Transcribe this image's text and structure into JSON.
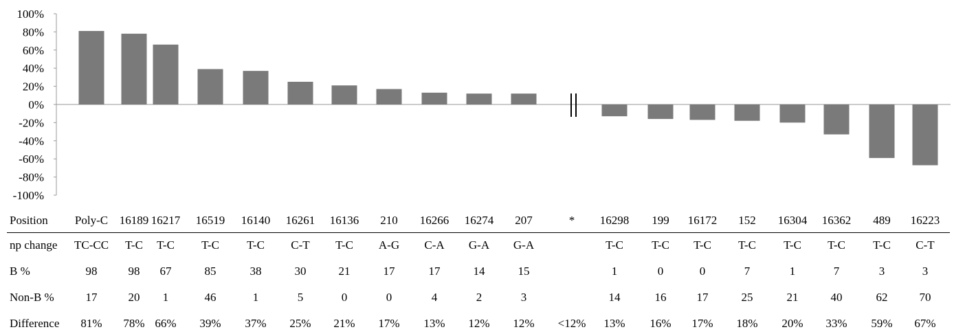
{
  "chart_data": {
    "type": "bar",
    "categories": [
      "Poly-C",
      "16189",
      "16217",
      "16519",
      "16140",
      "16261",
      "16136",
      "210",
      "16266",
      "16274",
      "207",
      "*",
      "16298",
      "199",
      "16172",
      "152",
      "16304",
      "16362",
      "489",
      "16223"
    ],
    "values": [
      81,
      78,
      66,
      39,
      37,
      25,
      21,
      17,
      13,
      12,
      12,
      null,
      -13,
      -16,
      -17,
      -18,
      -20,
      -33,
      -59,
      -67
    ],
    "y_ticks": [
      "100%",
      "80%",
      "60%",
      "40%",
      "20%",
      "0%",
      "-20%",
      "-40%",
      "-60%",
      "-80%",
      "-100%"
    ],
    "ylim": [
      -100,
      100
    ],
    "ylabel": "",
    "xlabel": "",
    "title": "",
    "grid": false,
    "bar_color": "#7a7a7a",
    "axis_break_marker": "||"
  },
  "table": {
    "rows": [
      {
        "label": "Position",
        "cells": [
          "Poly-C",
          "16189",
          "16217",
          "16519",
          "16140",
          "16261",
          "16136",
          "210",
          "16266",
          "16274",
          "207",
          "*",
          "16298",
          "199",
          "16172",
          "152",
          "16304",
          "16362",
          "489",
          "16223"
        ]
      },
      {
        "label": "np change",
        "cells": [
          "TC-CC",
          "T-C",
          "T-C",
          "T-C",
          "T-C",
          "C-T",
          "T-C",
          "A-G",
          "C-A",
          "G-A",
          "G-A",
          "",
          "T-C",
          "T-C",
          "T-C",
          "T-C",
          "T-C",
          "T-C",
          "T-C",
          "C-T"
        ]
      },
      {
        "label": "B %",
        "cells": [
          "98",
          "98",
          "67",
          "85",
          "38",
          "30",
          "21",
          "17",
          "17",
          "14",
          "15",
          "",
          "1",
          "0",
          "0",
          "7",
          "1",
          "7",
          "3",
          "3"
        ]
      },
      {
        "label": "Non-B %",
        "cells": [
          "17",
          "20",
          "1",
          "46",
          "1",
          "5",
          "0",
          "0",
          "4",
          "2",
          "3",
          "",
          "14",
          "16",
          "17",
          "25",
          "21",
          "40",
          "62",
          "70"
        ]
      },
      {
        "label": "Difference",
        "cells": [
          "81%",
          "78%",
          "66%",
          "39%",
          "37%",
          "25%",
          "21%",
          "17%",
          "13%",
          "12%",
          "12%",
          "<12%",
          "13%",
          "16%",
          "17%",
          "18%",
          "20%",
          "33%",
          "59%",
          "67%"
        ]
      }
    ]
  }
}
